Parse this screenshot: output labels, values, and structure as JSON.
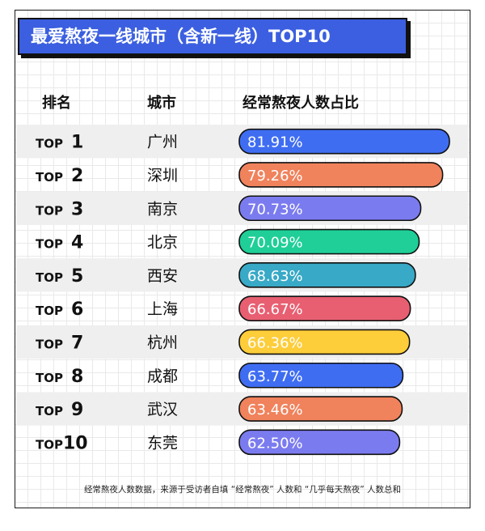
{
  "title": "最爱熬夜一线城市（含新一线）TOP10",
  "columns": {
    "rank": "排名",
    "city": "城市",
    "value": "经常熬夜人数占比"
  },
  "footnote": "经常熬夜人数数据，来源于受访者自填 “经常熬夜” 人数和 “几乎每天熬夜” 人数总和",
  "colors": {
    "title_bg": "#3b5fe0",
    "row_band": "#efefef",
    "bar_text": "#ffffff",
    "outline": "#111111"
  },
  "chart_data": {
    "type": "bar",
    "orientation": "horizontal",
    "rank_prefix": "TOP",
    "ranks": [
      "1",
      "2",
      "3",
      "4",
      "5",
      "6",
      "7",
      "8",
      "9",
      "10"
    ],
    "categories": [
      "广州",
      "深圳",
      "南京",
      "北京",
      "西安",
      "上海",
      "杭州",
      "成都",
      "武汉",
      "东莞"
    ],
    "values": [
      81.91,
      79.26,
      70.73,
      70.09,
      68.63,
      66.67,
      66.36,
      63.77,
      63.46,
      62.5
    ],
    "labels": [
      "81.91%",
      "79.26%",
      "70.73%",
      "70.09%",
      "68.63%",
      "66.67%",
      "66.36%",
      "63.77%",
      "63.46%",
      "62.50%"
    ],
    "bar_colors": [
      "#3f6df2",
      "#f0825c",
      "#7b7bf0",
      "#1fcf97",
      "#38a9c6",
      "#e85f72",
      "#fdcd3a",
      "#3f6df2",
      "#f0825c",
      "#7b7bf0"
    ],
    "value_unit": "%",
    "grid": true
  }
}
